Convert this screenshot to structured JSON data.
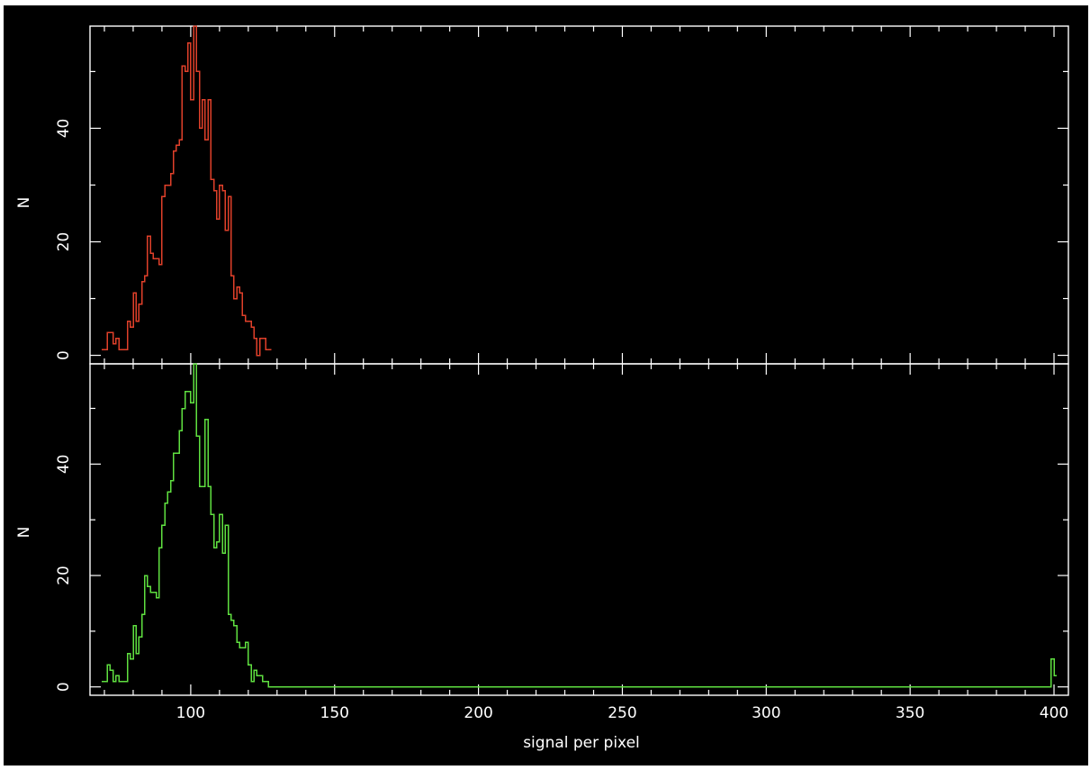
{
  "colors": {
    "background": "#000000",
    "axes": "#ffffff",
    "top_series": "#e0402a",
    "bottom_series": "#5fe040"
  },
  "chart_data": [
    {
      "type": "histogram",
      "ylabel": "N",
      "xlabel": "",
      "xlim": [
        65,
        405
      ],
      "ylim": [
        -1.5,
        58
      ],
      "xticks": [
        100,
        150,
        200,
        250,
        300,
        350,
        400
      ],
      "xtick_labels": [],
      "yticks": [
        0,
        20,
        40
      ],
      "ytick_labels": [
        "0",
        "20",
        "40"
      ],
      "series": [
        {
          "color": "#e0402a",
          "bins": [
            [
              69,
              1
            ],
            [
              70,
              1
            ],
            [
              71,
              4
            ],
            [
              72,
              4
            ],
            [
              73,
              2
            ],
            [
              74,
              3
            ],
            [
              75,
              1
            ],
            [
              76,
              1
            ],
            [
              77,
              1
            ],
            [
              78,
              6
            ],
            [
              79,
              5
            ],
            [
              80,
              11
            ],
            [
              81,
              6
            ],
            [
              82,
              9
            ],
            [
              83,
              13
            ],
            [
              84,
              14
            ],
            [
              85,
              21
            ],
            [
              86,
              18
            ],
            [
              87,
              17
            ],
            [
              88,
              17
            ],
            [
              89,
              16
            ],
            [
              90,
              28
            ],
            [
              91,
              30
            ],
            [
              92,
              30
            ],
            [
              93,
              32
            ],
            [
              94,
              36
            ],
            [
              95,
              37
            ],
            [
              96,
              38
            ],
            [
              97,
              51
            ],
            [
              98,
              50
            ],
            [
              99,
              55
            ],
            [
              100,
              45
            ],
            [
              101,
              58
            ],
            [
              102,
              50
            ],
            [
              103,
              40
            ],
            [
              104,
              45
            ],
            [
              105,
              38
            ],
            [
              106,
              45
            ],
            [
              107,
              31
            ],
            [
              108,
              29
            ],
            [
              109,
              24
            ],
            [
              110,
              30
            ],
            [
              111,
              29
            ],
            [
              112,
              22
            ],
            [
              113,
              28
            ],
            [
              114,
              14
            ],
            [
              115,
              10
            ],
            [
              116,
              12
            ],
            [
              117,
              11
            ],
            [
              118,
              7
            ],
            [
              119,
              6
            ],
            [
              120,
              6
            ],
            [
              121,
              5
            ],
            [
              122,
              3
            ],
            [
              123,
              0
            ],
            [
              124,
              3
            ],
            [
              125,
              3
            ],
            [
              126,
              1
            ],
            [
              127,
              1
            ]
          ]
        }
      ]
    },
    {
      "type": "histogram",
      "ylabel": "N",
      "xlabel": "signal per pixel",
      "xlim": [
        65,
        405
      ],
      "ylim": [
        -1.5,
        58
      ],
      "xticks": [
        100,
        150,
        200,
        250,
        300,
        350,
        400
      ],
      "xtick_labels": [
        "100",
        "150",
        "200",
        "250",
        "300",
        "350",
        "400"
      ],
      "yticks": [
        0,
        20,
        40
      ],
      "ytick_labels": [
        "0",
        "20",
        "40"
      ],
      "series": [
        {
          "color": "#5fe040",
          "bins": [
            [
              69,
              1
            ],
            [
              70,
              1
            ],
            [
              71,
              4
            ],
            [
              72,
              3
            ],
            [
              73,
              1
            ],
            [
              74,
              2
            ],
            [
              75,
              1
            ],
            [
              76,
              1
            ],
            [
              77,
              1
            ],
            [
              78,
              6
            ],
            [
              79,
              5
            ],
            [
              80,
              11
            ],
            [
              81,
              6
            ],
            [
              82,
              9
            ],
            [
              83,
              13
            ],
            [
              84,
              20
            ],
            [
              85,
              18
            ],
            [
              86,
              17
            ],
            [
              87,
              17
            ],
            [
              88,
              16
            ],
            [
              89,
              25
            ],
            [
              90,
              29
            ],
            [
              91,
              33
            ],
            [
              92,
              35
            ],
            [
              93,
              37
            ],
            [
              94,
              42
            ],
            [
              95,
              42
            ],
            [
              96,
              46
            ],
            [
              97,
              50
            ],
            [
              98,
              53
            ],
            [
              99,
              53
            ],
            [
              100,
              51
            ],
            [
              101,
              58
            ],
            [
              102,
              45
            ],
            [
              103,
              36
            ],
            [
              104,
              36
            ],
            [
              105,
              48
            ],
            [
              106,
              36
            ],
            [
              107,
              31
            ],
            [
              108,
              25
            ],
            [
              109,
              26
            ],
            [
              110,
              31
            ],
            [
              111,
              24
            ],
            [
              112,
              29
            ],
            [
              113,
              13
            ],
            [
              114,
              12
            ],
            [
              115,
              11
            ],
            [
              116,
              8
            ],
            [
              117,
              7
            ],
            [
              118,
              7
            ],
            [
              119,
              8
            ],
            [
              120,
              4
            ],
            [
              121,
              1
            ],
            [
              122,
              3
            ],
            [
              123,
              2
            ],
            [
              124,
              2
            ],
            [
              125,
              1
            ],
            [
              126,
              1
            ],
            [
              127,
              0
            ],
            [
              128,
              0
            ],
            [
              129,
              0
            ],
            [
              398,
              0
            ],
            [
              399,
              5
            ],
            [
              400,
              2
            ]
          ],
          "baseline_to": 398
        }
      ]
    }
  ]
}
